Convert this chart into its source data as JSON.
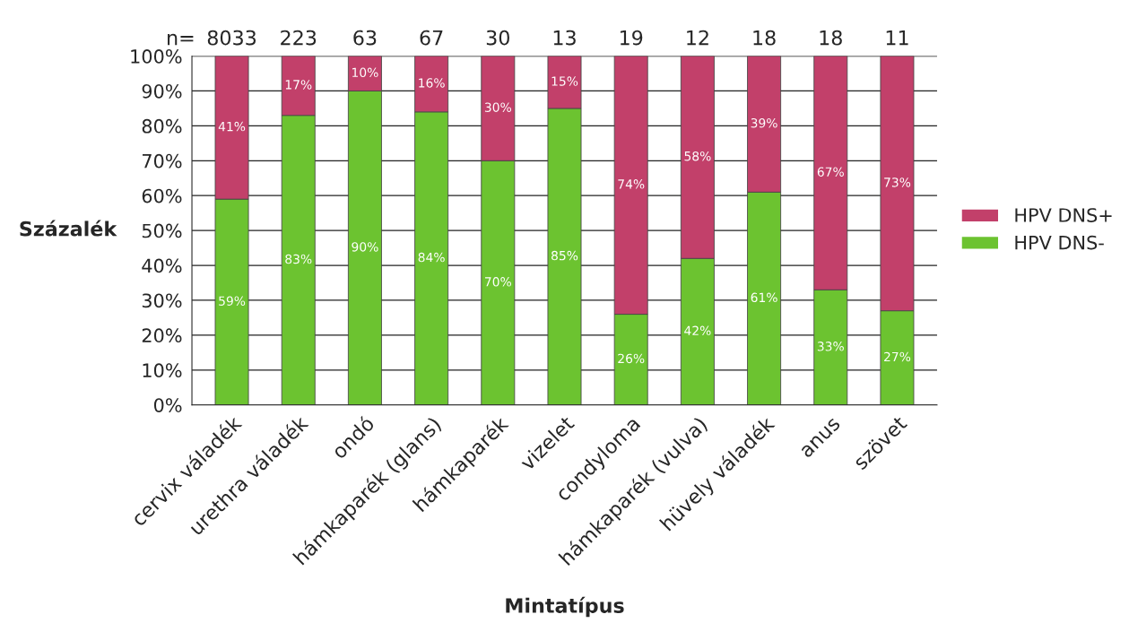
{
  "chart_data": {
    "type": "bar",
    "stacked": true,
    "xlabel": "Mintatípus",
    "ylabel": "Százalék",
    "categories": [
      "cervix váladék",
      "urethra váladék",
      "ondó",
      "hámkaparék (glans)",
      "hámkaparék",
      "vizelet",
      "condyloma",
      "hámkaparék (vulva)",
      "hüvely váladék",
      "anus",
      "szövet"
    ],
    "series": [
      {
        "name": "HPV DNS-",
        "color": "#6cc330",
        "values": [
          59,
          83,
          90,
          84,
          70,
          85,
          26,
          42,
          61,
          33,
          27
        ],
        "value_labels": [
          "59%",
          "83%",
          "90%",
          "84%",
          "70%",
          "85%",
          "26%",
          "42%",
          "61%",
          "33%",
          "27%"
        ]
      },
      {
        "name": "HPV DNS+",
        "color": "#c2406a",
        "values": [
          41,
          17,
          10,
          16,
          30,
          15,
          74,
          58,
          39,
          67,
          73
        ],
        "value_labels": [
          "41%",
          "17%",
          "10%",
          "16%",
          "30%",
          "15%",
          "74%",
          "58%",
          "39%",
          "67%",
          "73%"
        ]
      }
    ],
    "ylim": [
      0,
      100
    ],
    "yticks": [
      {
        "value": 0,
        "label": "0%"
      },
      {
        "value": 10,
        "label": "10%"
      },
      {
        "value": 20,
        "label": "20%"
      },
      {
        "value": 30,
        "label": "30%"
      },
      {
        "value": 40,
        "label": "40%"
      },
      {
        "value": 50,
        "label": "50%"
      },
      {
        "value": 60,
        "label": "60%"
      },
      {
        "value": 70,
        "label": "70%"
      },
      {
        "value": 80,
        "label": "80%"
      },
      {
        "value": 90,
        "label": "90%"
      },
      {
        "value": 100,
        "label": "100%"
      }
    ],
    "grid": "y",
    "legend": "right",
    "annotations": [
      "n=",
      "8033",
      "223",
      "63",
      "67",
      "30",
      "13",
      "19",
      "12",
      "18",
      "18",
      "11"
    ]
  }
}
